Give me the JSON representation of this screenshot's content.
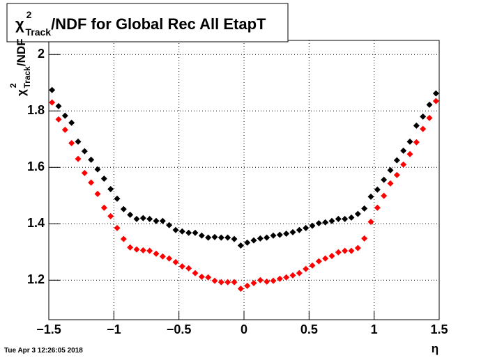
{
  "chart_data": {
    "type": "scatter",
    "title": {
      "symbol": "χ",
      "sup": "2",
      "sub": "Track",
      "text": "/NDF for Global Rec All EtapT"
    },
    "y_label": {
      "symbol": "χ",
      "sup": "2",
      "sub": "Track",
      "text": "/NDF"
    },
    "x_label": "η",
    "timestamp": "Tue Apr  3 12:26:05 2018",
    "x": [
      -1.475,
      -1.425,
      -1.375,
      -1.325,
      -1.275,
      -1.225,
      -1.175,
      -1.125,
      -1.075,
      -1.025,
      -0.975,
      -0.925,
      -0.875,
      -0.825,
      -0.775,
      -0.725,
      -0.675,
      -0.625,
      -0.575,
      -0.525,
      -0.475,
      -0.425,
      -0.375,
      -0.325,
      -0.275,
      -0.225,
      -0.175,
      -0.125,
      -0.075,
      -0.025,
      0.025,
      0.075,
      0.125,
      0.175,
      0.225,
      0.275,
      0.325,
      0.375,
      0.425,
      0.475,
      0.525,
      0.575,
      0.625,
      0.675,
      0.725,
      0.775,
      0.825,
      0.875,
      0.925,
      0.975,
      1.025,
      1.075,
      1.125,
      1.175,
      1.225,
      1.275,
      1.325,
      1.375,
      1.425,
      1.475
    ],
    "series": [
      {
        "color": "#000000",
        "values": [
          1.874,
          1.817,
          1.783,
          1.758,
          1.691,
          1.657,
          1.627,
          1.593,
          1.56,
          1.523,
          1.489,
          1.452,
          1.432,
          1.417,
          1.42,
          1.417,
          1.41,
          1.41,
          1.395,
          1.378,
          1.373,
          1.368,
          1.368,
          1.358,
          1.351,
          1.353,
          1.351,
          1.351,
          1.346,
          1.323,
          1.333,
          1.341,
          1.348,
          1.351,
          1.358,
          1.361,
          1.365,
          1.37,
          1.378,
          1.385,
          1.393,
          1.402,
          1.405,
          1.41,
          1.417,
          1.417,
          1.422,
          1.435,
          1.454,
          1.496,
          1.521,
          1.556,
          1.59,
          1.625,
          1.659,
          1.691,
          1.748,
          1.78,
          1.822,
          1.862
        ]
      },
      {
        "color": "#ff0000",
        "values": [
          1.83,
          1.77,
          1.733,
          1.686,
          1.63,
          1.58,
          1.546,
          1.506,
          1.457,
          1.427,
          1.385,
          1.346,
          1.316,
          1.309,
          1.306,
          1.304,
          1.294,
          1.284,
          1.277,
          1.264,
          1.249,
          1.242,
          1.225,
          1.212,
          1.21,
          1.198,
          1.193,
          1.193,
          1.193,
          1.17,
          1.18,
          1.19,
          1.2,
          1.195,
          1.198,
          1.205,
          1.21,
          1.217,
          1.225,
          1.24,
          1.252,
          1.267,
          1.277,
          1.286,
          1.299,
          1.304,
          1.304,
          1.314,
          1.348,
          1.407,
          1.457,
          1.499,
          1.543,
          1.573,
          1.61,
          1.647,
          1.689,
          1.736,
          1.775,
          1.835
        ]
      }
    ],
    "xlim": [
      -1.5,
      1.5
    ],
    "ylim": [
      1.06,
      2.05
    ],
    "xticks": [
      {
        "value": -1.5,
        "label": "−1.5"
      },
      {
        "value": -1,
        "label": "−1"
      },
      {
        "value": -0.5,
        "label": "−0.5"
      },
      0,
      0.5,
      1,
      1.5
    ],
    "yticks": [
      1.2,
      1.4,
      1.6,
      1.8,
      2
    ],
    "grid": true
  }
}
